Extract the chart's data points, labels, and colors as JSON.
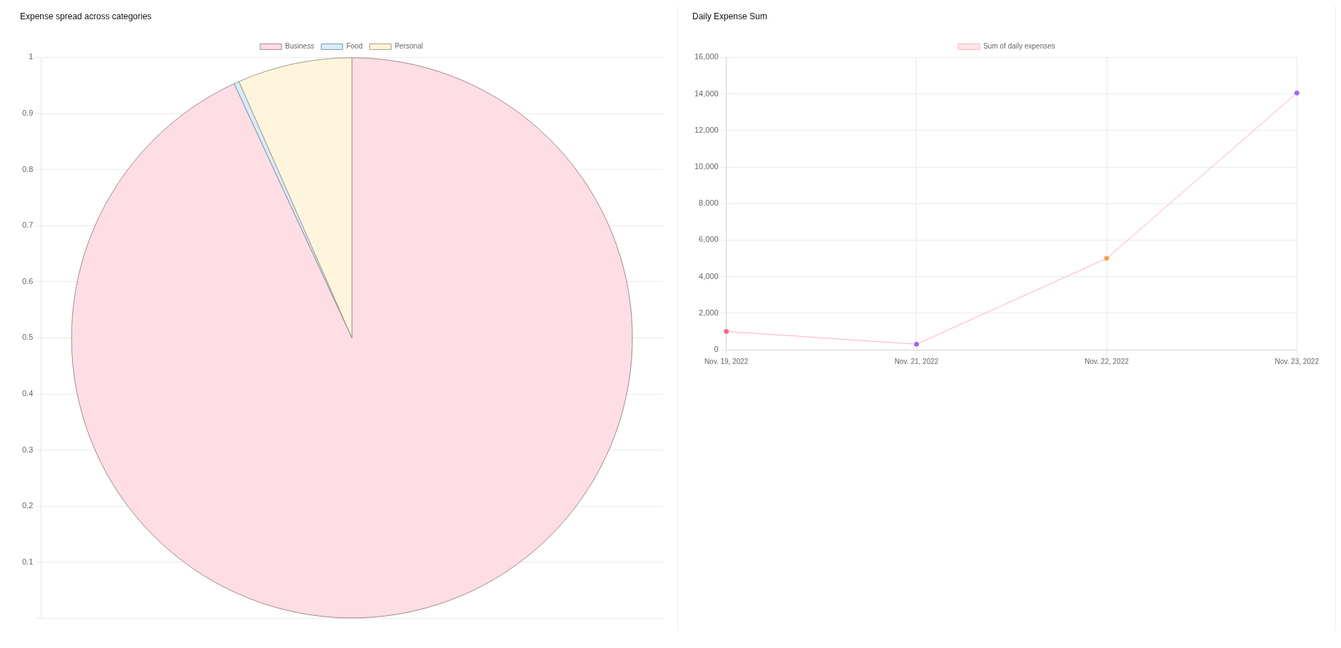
{
  "chart_data": [
    {
      "type": "pie",
      "title": "Expense spread across categories",
      "categories": [
        "Business",
        "Food",
        "Personal"
      ],
      "values": [
        93.1,
        0.3,
        6.6
      ],
      "colors": [
        "#ffdde4",
        "#d7ecfb",
        "#fff5dd"
      ],
      "annotations": [
        "1",
        "0.9",
        "0.8",
        "0.7",
        "0.6",
        "0.5",
        "0.4",
        "0.3",
        "0.2",
        "0.1"
      ],
      "grid": "y",
      "legend": "top"
    },
    {
      "type": "line",
      "title": "Daily Expense Sum",
      "categories": [
        "Nov. 19, 2022",
        "Nov. 21, 2022",
        "Nov. 22, 2022",
        "Nov. 23, 2022"
      ],
      "series": [
        {
          "name": "Sum of daily expenses",
          "color": "#ffb1c1",
          "colors": [
            "#ff6384",
            "#9966ff",
            "#ff9f40",
            "#9966ff"
          ],
          "values": [
            1000,
            300,
            5000,
            14050
          ]
        }
      ],
      "ylim": [
        0,
        16000
      ],
      "yticks": [
        0,
        {
          "value": 2000,
          "label": "2,000"
        },
        {
          "value": 4000,
          "label": "4,000"
        },
        {
          "value": 6000,
          "label": "6,000"
        },
        {
          "value": 8000,
          "label": "8,000"
        },
        {
          "value": 10000,
          "label": "10,000"
        },
        {
          "value": 12000,
          "label": "12,000"
        },
        {
          "value": 14000,
          "label": "14,000"
        },
        {
          "value": 16000,
          "label": "16,000"
        }
      ],
      "grid": true,
      "legend": "top",
      "marker": "circle"
    }
  ]
}
